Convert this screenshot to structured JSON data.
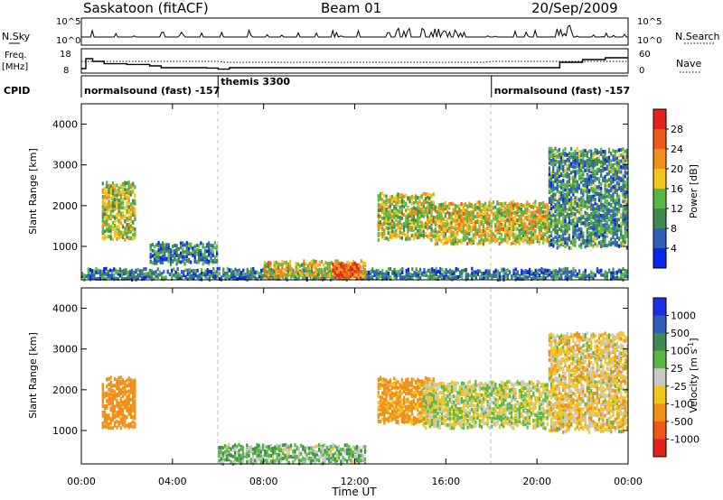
{
  "header": {
    "station": "Saskatoon (fitACF)",
    "beam": "Beam 01",
    "date": "20/Sep/2009"
  },
  "summary_panels": {
    "nsky_label": "N.Sky",
    "nsky_ticks": [
      "10^5",
      "10^0"
    ],
    "nsearch_label": "N.Search",
    "nsearch_ticks": [
      "10^5",
      "10^0"
    ],
    "freq_label": "Freq.",
    "freq_unit": "[MHz]",
    "freq_ticks": [
      "18",
      "8"
    ],
    "nave_label": "Nave",
    "nave_ticks": [
      "60",
      "0"
    ],
    "cpid_label": "CPID",
    "cpid_segments": [
      {
        "name": "normalsound (fast) -157",
        "start_hour": 0.0,
        "end_hour": 6.0
      },
      {
        "name": "themis 3300",
        "start_hour": 6.0,
        "end_hour": 18.0
      },
      {
        "name": "normalsound (fast) -157",
        "start_hour": 18.0,
        "end_hour": 24.0
      }
    ],
    "freq_series": {
      "hours": [
        0,
        0.2,
        0.5,
        1.0,
        2.0,
        3.0,
        3.5,
        4.5,
        5.5,
        6.0,
        6.5,
        7.0,
        18.0,
        20.5,
        21.0,
        22.0,
        23.0,
        24.0
      ],
      "mhz": [
        10.5,
        16.0,
        14.5,
        13.2,
        12.8,
        12.0,
        11.0,
        11.0,
        10.8,
        10.2,
        11.0,
        11.0,
        11.0,
        11.0,
        14.0,
        15.5,
        16.5,
        16.5
      ]
    }
  },
  "chart_data": [
    {
      "type": "heatmap",
      "name": "power",
      "ylabel": "Slant Range [km]",
      "ylim": [
        180,
        4500
      ],
      "yticks": [
        1000,
        2000,
        3000,
        4000
      ],
      "xlim": [
        0,
        24
      ],
      "colorbar_label": "Power [dB]",
      "colorbar_ticks": [
        4,
        8,
        12,
        16,
        20,
        24,
        28
      ],
      "colorbar_colors": [
        "#0a24e8",
        "#2f5fb8",
        "#3f8a4e",
        "#58b842",
        "#f2c51e",
        "#f08f17",
        "#f05818",
        "#e6201a"
      ],
      "regions": [
        {
          "t0": 0.9,
          "t1": 2.4,
          "r0": 1200,
          "r1": 2600,
          "v": 16
        },
        {
          "t0": 3.0,
          "t1": 6.0,
          "r0": 600,
          "r1": 1100,
          "v": 8
        },
        {
          "t0": 0.0,
          "t1": 24.0,
          "r0": 200,
          "r1": 450,
          "v": 8
        },
        {
          "t0": 8.0,
          "t1": 12.5,
          "r0": 250,
          "r1": 650,
          "v": 18
        },
        {
          "t0": 11.0,
          "t1": 12.3,
          "r0": 250,
          "r1": 600,
          "v": 26
        },
        {
          "t0": 13.0,
          "t1": 15.5,
          "r0": 1200,
          "r1": 2300,
          "v": 16
        },
        {
          "t0": 15.5,
          "t1": 20.5,
          "r0": 1100,
          "r1": 2100,
          "v": 18
        },
        {
          "t0": 20.5,
          "t1": 24.0,
          "r0": 1000,
          "r1": 3400,
          "v": 10
        }
      ]
    },
    {
      "type": "heatmap",
      "name": "velocity",
      "xlabel": "Time UT",
      "ylabel": "Slant Range [km]",
      "ylim": [
        180,
        4500
      ],
      "yticks": [
        1000,
        2000,
        3000,
        4000
      ],
      "xlim": [
        0,
        24
      ],
      "xticks": [
        "00:00",
        "04:00",
        "08:00",
        "12:00",
        "16:00",
        "20:00",
        "00:00"
      ],
      "colorbar_label": "Velocity [m s^-1]",
      "colorbar_ticks": [
        1000,
        500,
        100,
        25,
        -25,
        -100,
        -500,
        -1000
      ],
      "colorbar_colors": [
        "#1e2ee6",
        "#2f5fb8",
        "#3f8a4e",
        "#58b842",
        "#c8c8c8",
        "#f2c51e",
        "#f08f17",
        "#f05818",
        "#e6201a"
      ],
      "regions": [
        {
          "t0": 0.9,
          "t1": 2.4,
          "r0": 1100,
          "r1": 2300,
          "v": -300
        },
        {
          "t0": 6.0,
          "t1": 12.5,
          "r0": 200,
          "r1": 650,
          "v": 60
        },
        {
          "t0": 13.0,
          "t1": 15.5,
          "r0": 1200,
          "r1": 2300,
          "v": -150
        },
        {
          "t0": 15.0,
          "t1": 20.5,
          "r0": 1100,
          "r1": 2200,
          "v": 0
        },
        {
          "t0": 20.5,
          "t1": 24.0,
          "r0": 1000,
          "r1": 3400,
          "v": -50
        }
      ]
    }
  ]
}
